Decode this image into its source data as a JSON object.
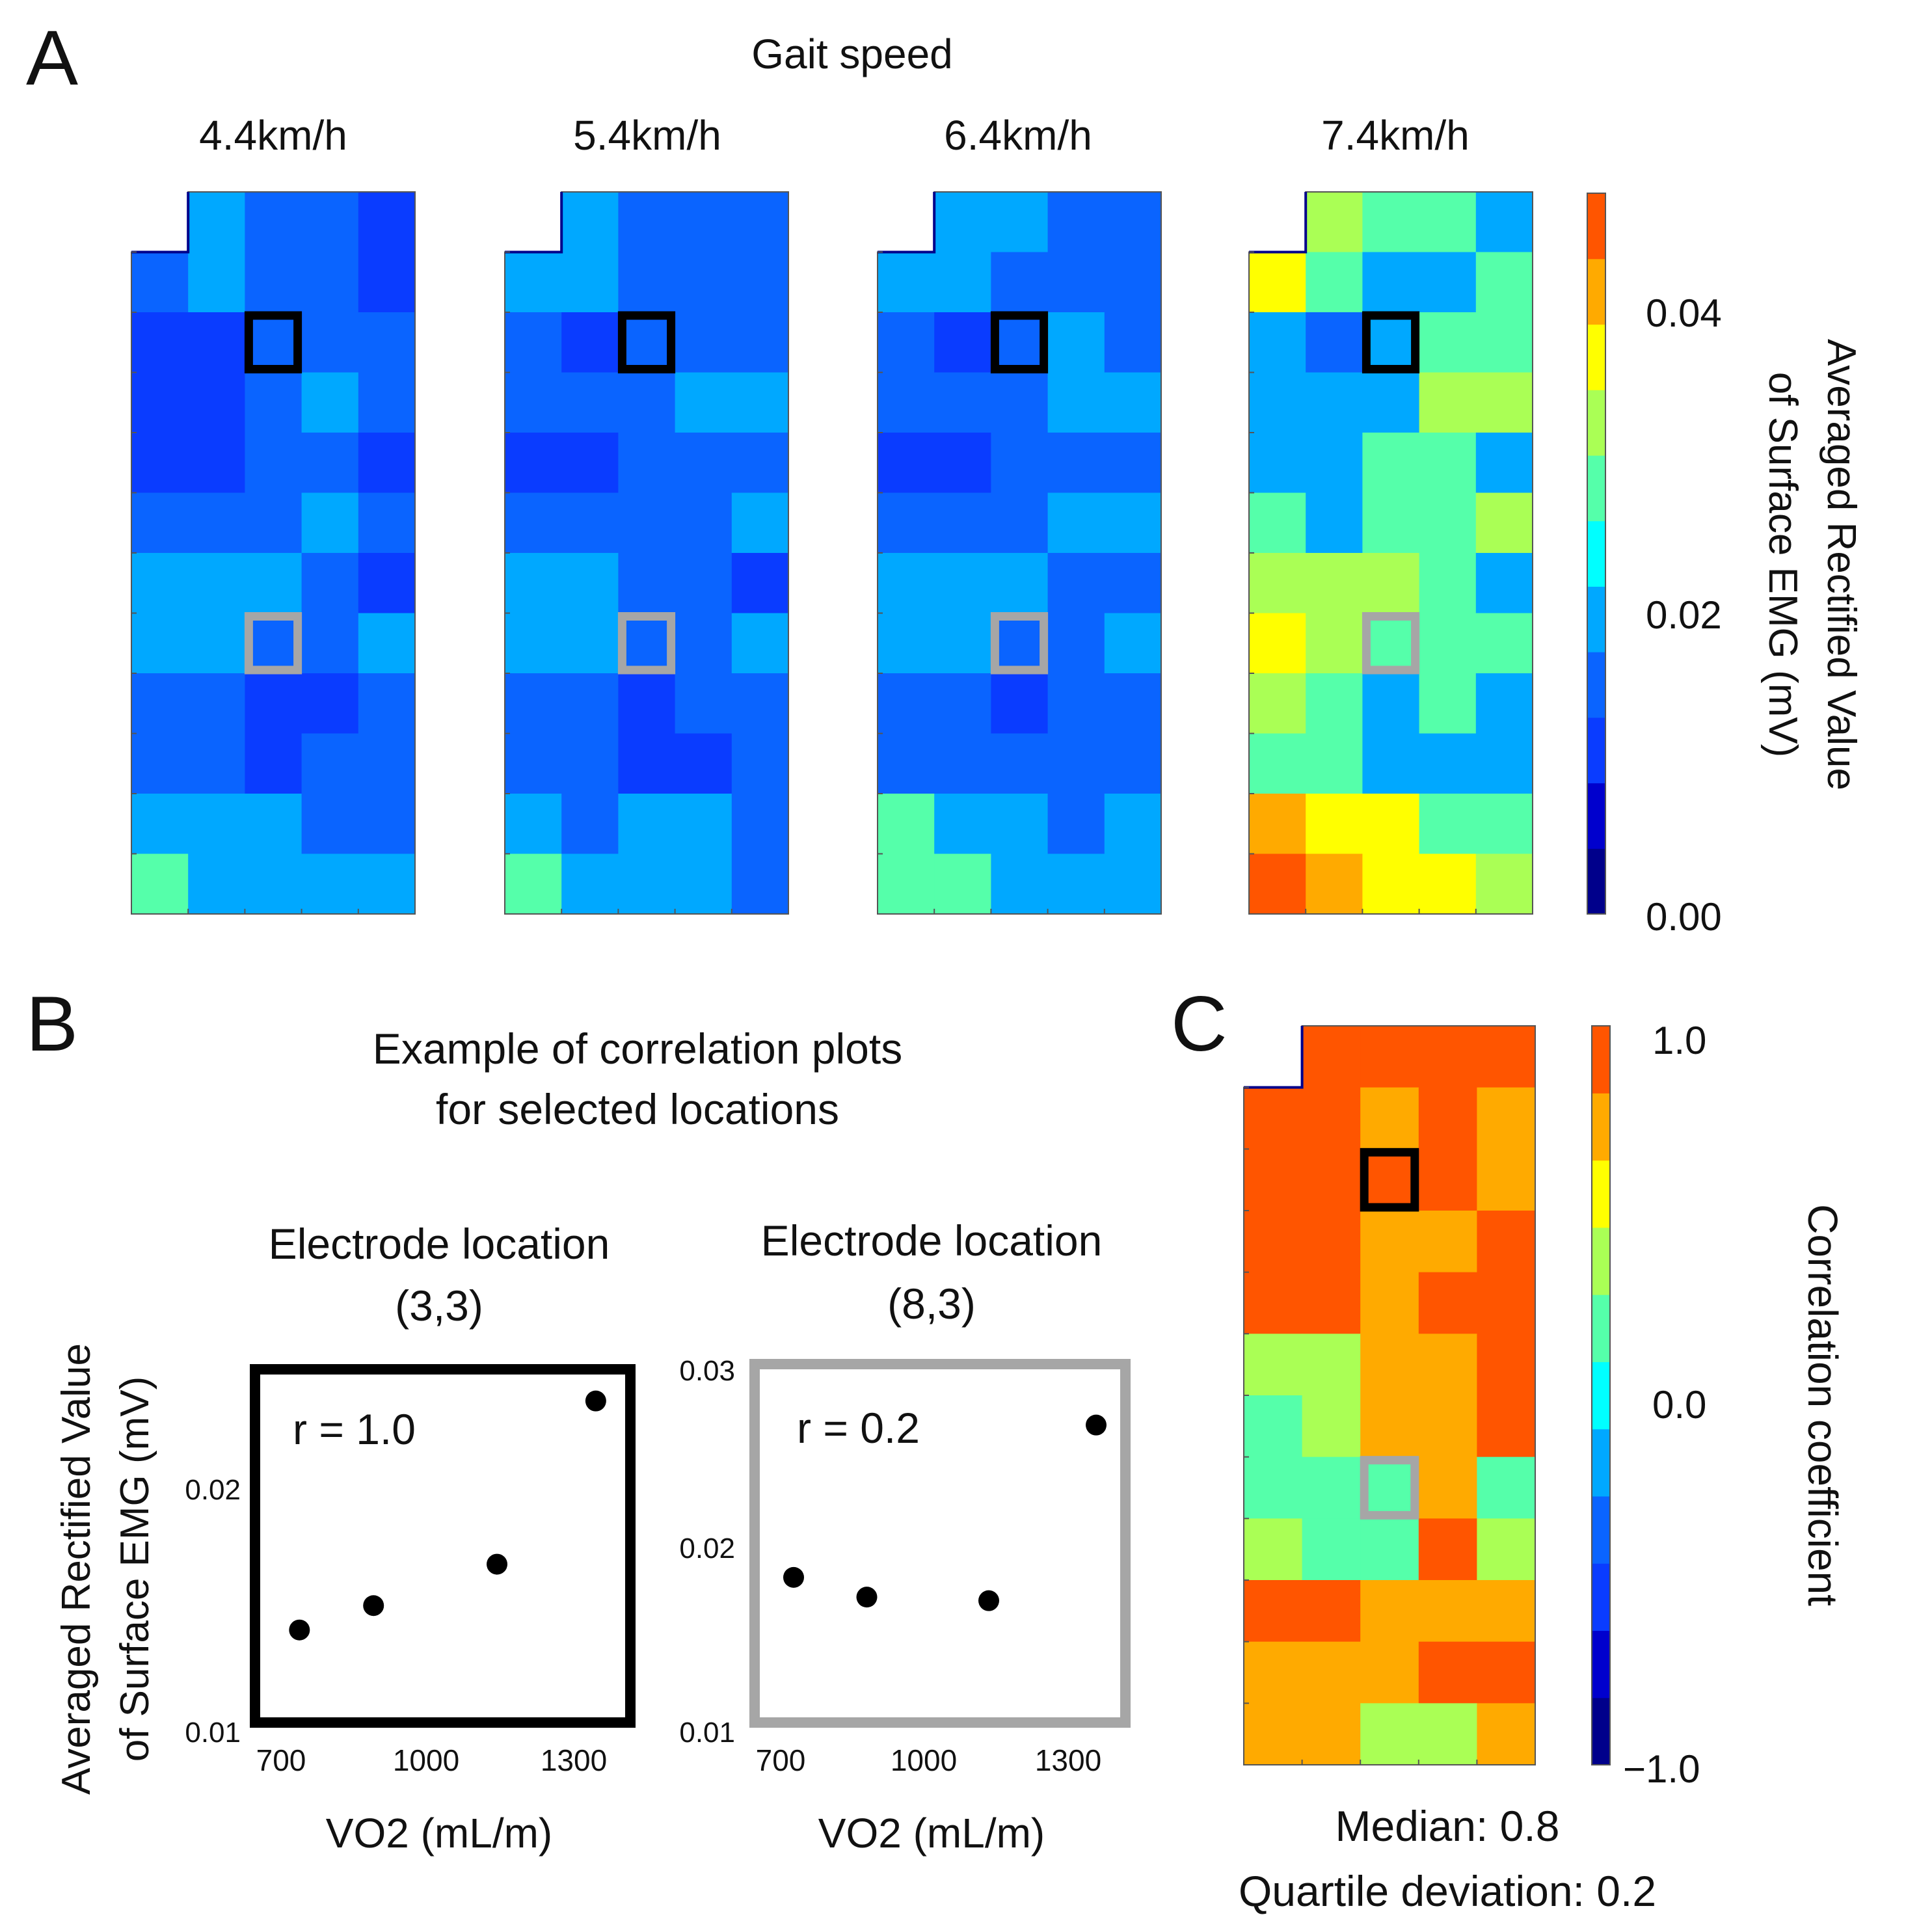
{
  "panels": {
    "a": {
      "label": "A",
      "title": "Gait speed",
      "speeds": [
        "4.4km/h",
        "5.4km/h",
        "6.4km/h",
        "7.4km/h"
      ],
      "colorbar": {
        "label_line1": "Averaged Rectified Value",
        "label_line2": "of Surface EMG (mV)",
        "ticks": [
          "0.04",
          "0.02",
          "0.00"
        ]
      }
    },
    "b": {
      "label": "B",
      "title_line1": "Example of correlation plots",
      "title_line2": "for selected locations",
      "ylabel_line1": "Averaged Rectified Value",
      "ylabel_line2": "of Surface EMG (mV)",
      "plot1": {
        "title_line1": "Electrode location",
        "title_line2": "(3,3)",
        "r": "r = 1.0",
        "xlabel": "VO2 (mL/m)",
        "xticks": [
          "700",
          "1000",
          "1300"
        ],
        "yticks": [
          "0.02",
          "0.01"
        ]
      },
      "plot2": {
        "title_line1": "Electrode location",
        "title_line2": "(8,3)",
        "r": "r = 0.2",
        "xlabel": "VO2 (mL/m)",
        "xticks": [
          "700",
          "1000",
          "1300"
        ],
        "yticks": [
          "0.03",
          "0.02",
          "0.01"
        ]
      }
    },
    "c": {
      "label": "C",
      "colorbar": {
        "label": "Correlation coefficient",
        "ticks": [
          "1.0",
          "0.0",
          "−1.0"
        ]
      },
      "median": "Median:  0.8",
      "quartile": "Quartile deviation:  0.2"
    }
  },
  "colors": {
    "emg_scale": [
      "#00008b",
      "#0000cd",
      "#0a3cff",
      "#0a64ff",
      "#00a8ff",
      "#00ffff",
      "#55ffaa",
      "#aaff55",
      "#ffff00",
      "#ffaa00",
      "#ff5500"
    ],
    "box_black": "#000000",
    "box_gray": "#a6a6a6"
  },
  "chart_data": [
    {
      "type": "heatmap",
      "title": "4.4km/h",
      "rows": 12,
      "cols": 5,
      "missing": [
        [
          0,
          0
        ]
      ],
      "values": [
        [
          null,
          0.022,
          0.016,
          0.016,
          0.01
        ],
        [
          0.016,
          0.022,
          0.016,
          0.016,
          0.01
        ],
        [
          0.01,
          0.01,
          0.016,
          0.016,
          0.016
        ],
        [
          0.01,
          0.01,
          0.016,
          0.022,
          0.016
        ],
        [
          0.01,
          0.01,
          0.016,
          0.016,
          0.01
        ],
        [
          0.016,
          0.016,
          0.016,
          0.022,
          0.016
        ],
        [
          0.022,
          0.022,
          0.022,
          0.016,
          0.01
        ],
        [
          0.022,
          0.022,
          0.016,
          0.016,
          0.022
        ],
        [
          0.016,
          0.016,
          0.01,
          0.01,
          0.016
        ],
        [
          0.016,
          0.016,
          0.01,
          0.016,
          0.016
        ],
        [
          0.022,
          0.022,
          0.022,
          0.016,
          0.016
        ],
        [
          0.028,
          0.022,
          0.022,
          0.022,
          0.022
        ]
      ],
      "selected": {
        "black": [
          3,
          3
        ],
        "gray": [
          8,
          3
        ]
      }
    },
    {
      "type": "heatmap",
      "title": "5.4km/h",
      "rows": 12,
      "cols": 5,
      "missing": [
        [
          0,
          0
        ]
      ],
      "values": [
        [
          null,
          0.022,
          0.016,
          0.016,
          0.016
        ],
        [
          0.022,
          0.022,
          0.016,
          0.016,
          0.016
        ],
        [
          0.016,
          0.01,
          0.016,
          0.016,
          0.016
        ],
        [
          0.016,
          0.016,
          0.016,
          0.022,
          0.022
        ],
        [
          0.01,
          0.01,
          0.016,
          0.016,
          0.016
        ],
        [
          0.016,
          0.016,
          0.016,
          0.016,
          0.022
        ],
        [
          0.022,
          0.022,
          0.016,
          0.016,
          0.01
        ],
        [
          0.022,
          0.022,
          0.016,
          0.016,
          0.022
        ],
        [
          0.016,
          0.016,
          0.01,
          0.016,
          0.016
        ],
        [
          0.016,
          0.016,
          0.01,
          0.01,
          0.016
        ],
        [
          0.022,
          0.016,
          0.022,
          0.022,
          0.016
        ],
        [
          0.028,
          0.022,
          0.022,
          0.022,
          0.016
        ]
      ],
      "selected": {
        "black": [
          3,
          3
        ],
        "gray": [
          8,
          3
        ]
      }
    },
    {
      "type": "heatmap",
      "title": "6.4km/h",
      "rows": 12,
      "cols": 5,
      "missing": [
        [
          0,
          0
        ]
      ],
      "values": [
        [
          null,
          0.022,
          0.022,
          0.016,
          0.016
        ],
        [
          0.022,
          0.022,
          0.016,
          0.016,
          0.016
        ],
        [
          0.016,
          0.01,
          0.016,
          0.022,
          0.016
        ],
        [
          0.016,
          0.016,
          0.016,
          0.022,
          0.022
        ],
        [
          0.01,
          0.01,
          0.016,
          0.016,
          0.016
        ],
        [
          0.016,
          0.016,
          0.016,
          0.022,
          0.022
        ],
        [
          0.022,
          0.022,
          0.022,
          0.016,
          0.016
        ],
        [
          0.022,
          0.022,
          0.016,
          0.016,
          0.022
        ],
        [
          0.016,
          0.016,
          0.01,
          0.016,
          0.016
        ],
        [
          0.016,
          0.016,
          0.016,
          0.016,
          0.016
        ],
        [
          0.028,
          0.022,
          0.022,
          0.016,
          0.022
        ],
        [
          0.028,
          0.028,
          0.022,
          0.022,
          0.022
        ]
      ],
      "selected": {
        "black": [
          3,
          3
        ],
        "gray": [
          8,
          3
        ]
      }
    },
    {
      "type": "heatmap",
      "title": "7.4km/h",
      "rows": 12,
      "cols": 5,
      "missing": [
        [
          0,
          0
        ]
      ],
      "values": [
        [
          null,
          0.034,
          0.028,
          0.028,
          0.022
        ],
        [
          0.038,
          0.028,
          0.022,
          0.022,
          0.028
        ],
        [
          0.022,
          0.016,
          0.022,
          0.028,
          0.028
        ],
        [
          0.022,
          0.022,
          0.022,
          0.034,
          0.034
        ],
        [
          0.022,
          0.022,
          0.028,
          0.028,
          0.022
        ],
        [
          0.028,
          0.022,
          0.028,
          0.028,
          0.034
        ],
        [
          0.034,
          0.034,
          0.034,
          0.028,
          0.022
        ],
        [
          0.038,
          0.034,
          0.028,
          0.028,
          0.028
        ],
        [
          0.034,
          0.028,
          0.022,
          0.028,
          0.022
        ],
        [
          0.028,
          0.028,
          0.022,
          0.022,
          0.022
        ],
        [
          0.044,
          0.038,
          0.038,
          0.028,
          0.028
        ],
        [
          0.05,
          0.044,
          0.038,
          0.038,
          0.034
        ]
      ],
      "selected": {
        "black": [
          3,
          3
        ],
        "gray": [
          8,
          3
        ]
      }
    },
    {
      "type": "scatter",
      "title": "Electrode location (3,3)",
      "xlabel": "VO2 (mL/m)",
      "ylabel": "Averaged Rectified Value of Surface EMG (mV)",
      "xlim": [
        640,
        1400
      ],
      "ylim": [
        0.01,
        0.0245
      ],
      "x": [
        730,
        880,
        1130,
        1330
      ],
      "y": [
        0.0138,
        0.0148,
        0.0165,
        0.0232
      ],
      "annotation": "r = 1.0"
    },
    {
      "type": "scatter",
      "title": "Electrode location (8,3)",
      "xlabel": "VO2 (mL/m)",
      "ylabel": "Averaged Rectified Value of Surface EMG (mV)",
      "xlim": [
        640,
        1400
      ],
      "ylim": [
        0.01,
        0.03
      ],
      "x": [
        720,
        870,
        1120,
        1340
      ],
      "y": [
        0.0181,
        0.017,
        0.0168,
        0.0266
      ],
      "annotation": "r = 0.2"
    },
    {
      "type": "heatmap",
      "title": "Correlation coefficient",
      "rows": 12,
      "cols": 5,
      "missing": [
        [
          0,
          0
        ]
      ],
      "values": [
        [
          null,
          1.0,
          1.0,
          1.0,
          1.0
        ],
        [
          1.0,
          1.0,
          0.8,
          1.0,
          0.8
        ],
        [
          1.0,
          1.0,
          1.0,
          1.0,
          0.8
        ],
        [
          1.0,
          1.0,
          0.8,
          0.8,
          1.0
        ],
        [
          1.0,
          1.0,
          0.8,
          1.0,
          1.0
        ],
        [
          0.4,
          0.4,
          0.8,
          0.8,
          1.0
        ],
        [
          0.2,
          0.4,
          0.8,
          0.8,
          1.0
        ],
        [
          0.2,
          0.2,
          0.2,
          0.8,
          0.2
        ],
        [
          0.4,
          0.2,
          0.2,
          1.0,
          0.4
        ],
        [
          1.0,
          1.0,
          0.8,
          0.8,
          0.8
        ],
        [
          0.8,
          0.8,
          0.8,
          1.0,
          1.0
        ],
        [
          0.8,
          0.8,
          0.4,
          0.4,
          0.8
        ]
      ],
      "selected": {
        "black": [
          3,
          3
        ],
        "gray": [
          8,
          3
        ]
      },
      "median": 0.8,
      "quartile_deviation": 0.2
    }
  ]
}
